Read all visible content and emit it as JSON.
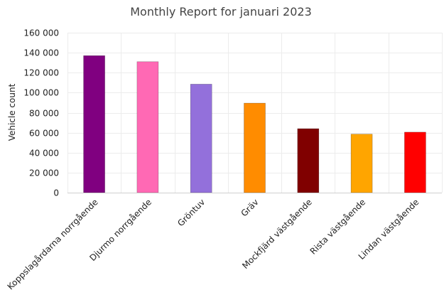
{
  "chart_data": {
    "type": "bar",
    "title": "Monthly Report for januari 2023",
    "xlabel": "",
    "ylabel": "Vehicle count",
    "ylim": [
      0,
      160000
    ],
    "yticks": [
      0,
      20000,
      40000,
      60000,
      80000,
      100000,
      120000,
      140000,
      160000
    ],
    "ytick_labels": [
      "0",
      "20 000",
      "40 000",
      "60 000",
      "80 000",
      "100 000",
      "120 000",
      "140 000",
      "160 000"
    ],
    "grid": true,
    "legend": "none",
    "categories": [
      "Koppslagårdarna norrgående",
      "Djurmo norrgående",
      "Gröntuv",
      "Gräv",
      "Mockfjärd västgående",
      "Rista västgående",
      "Lindan västgående"
    ],
    "values": [
      137000,
      131000,
      108500,
      89500,
      64000,
      58500,
      60500
    ],
    "colors": [
      "#800080",
      "#ff69b4",
      "#9370db",
      "#ff8c00",
      "#800000",
      "#ffa500",
      "#ff0000"
    ]
  }
}
